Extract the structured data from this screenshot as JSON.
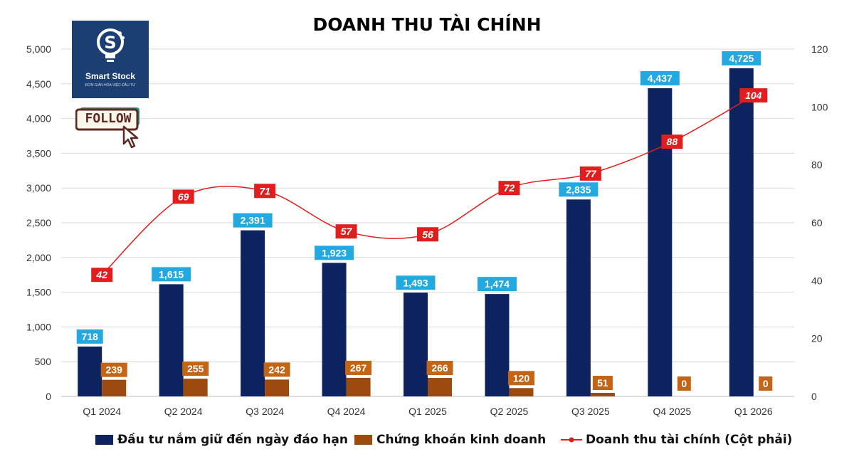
{
  "title": "DOANH THU TÀI CHÍNH",
  "logo": {
    "name": "Smart Stock",
    "tagline": "ĐƠN GIẢN HÓA VIỆC ĐẦU TƯ"
  },
  "follow": {
    "label": "FOLLOW"
  },
  "colors": {
    "navy": "#0d2360",
    "brown": "#9c4a0e",
    "line": "#e21d1d",
    "label_blue": "#23a8e0",
    "label_orange": "#c46415",
    "label_red": "#e21d1d",
    "logo_bg": "#1b3f73"
  },
  "chart_data": {
    "type": "bar",
    "categories": [
      "Q1 2024",
      "Q2 2024",
      "Q3 2024",
      "Q4 2024",
      "Q1 2025",
      "Q2 2025",
      "Q3 2025",
      "Q4 2025",
      "Q1 2026"
    ],
    "series": [
      {
        "name": "Đầu tư nắm giữ đến ngày đáo hạn",
        "type": "bar",
        "axis": "left",
        "values": [
          718,
          1615,
          2391,
          1923,
          1493,
          1474,
          2835,
          4437,
          4725
        ],
        "labels": [
          "718",
          "1,615",
          "2,391",
          "1,923",
          "1,493",
          "1,474",
          "2,835",
          "4,437",
          "4,725"
        ]
      },
      {
        "name": "Chứng khoán kinh doanh",
        "type": "bar",
        "axis": "left",
        "values": [
          239,
          255,
          242,
          267,
          266,
          120,
          51,
          0,
          0
        ],
        "labels": [
          "239",
          "255",
          "242",
          "267",
          "266",
          "120",
          "51",
          "0",
          "0"
        ]
      },
      {
        "name": "Doanh thu tài chính (Cột phải)",
        "type": "line",
        "axis": "right",
        "values": [
          42,
          69,
          71,
          57,
          56,
          72,
          77,
          88,
          104
        ],
        "labels": [
          "42",
          "69",
          "71",
          "57",
          "56",
          "72",
          "77",
          "88",
          "104"
        ]
      }
    ],
    "y_left": {
      "min": 0,
      "max": 5000,
      "ticks": [
        "0",
        "500",
        "1,000",
        "1,500",
        "2,000",
        "2,500",
        "3,000",
        "3,500",
        "4,000",
        "4,500",
        "5,000"
      ]
    },
    "y_right": {
      "min": 0,
      "max": 120,
      "ticks": [
        "0",
        "20",
        "40",
        "60",
        "80",
        "100",
        "120"
      ]
    },
    "grid": true,
    "legend": "bottom"
  }
}
